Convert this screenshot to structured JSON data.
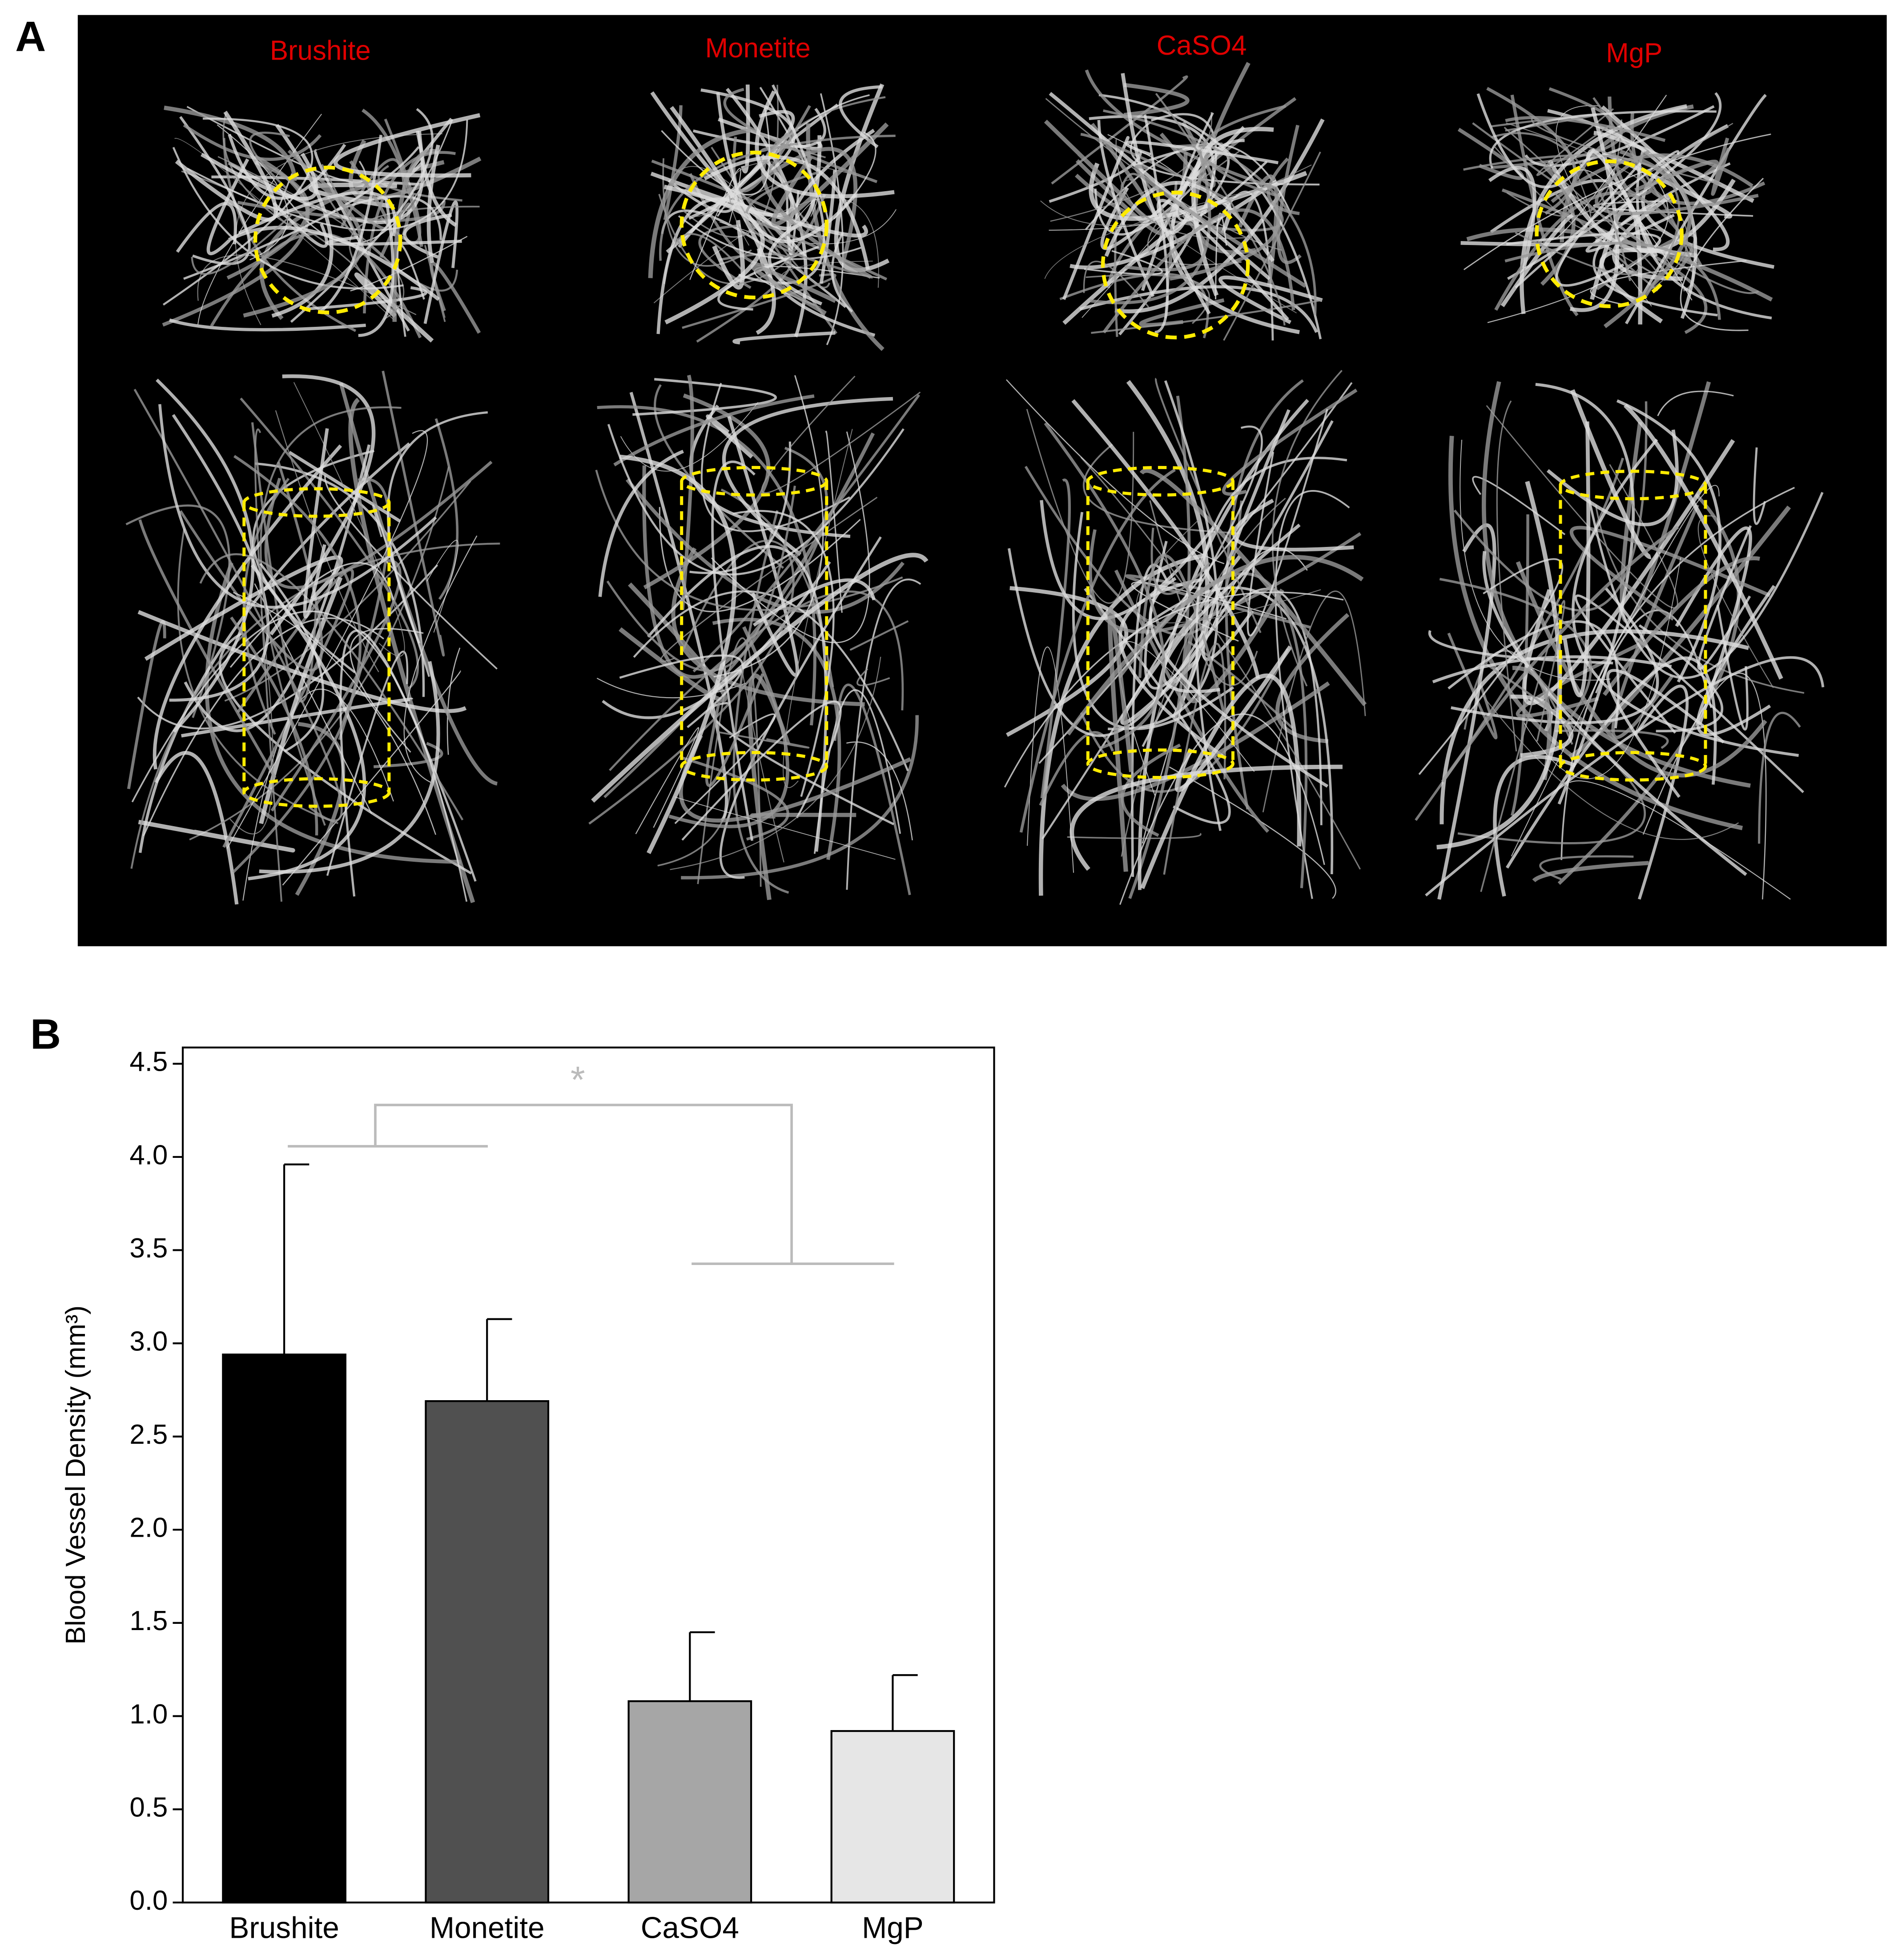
{
  "panel_a": {
    "label": "A",
    "titles": [
      "Brushite",
      "Monetite",
      "CaSO4",
      "MgP"
    ]
  },
  "panel_b": {
    "label": "B"
  },
  "chart_data": {
    "type": "bar",
    "y_label": "Blood Vessel Density (mm³)",
    "annotation": "*",
    "categories": [
      "Brushite",
      "Monetite",
      "CaSO4",
      "MgP"
    ],
    "values": [
      2.94,
      2.69,
      1.08,
      0.92
    ],
    "errors": [
      1.02,
      0.44,
      0.37,
      0.3
    ],
    "colors": [
      "#000000",
      "#505050",
      "#a6a6a6",
      "#e6e6e6"
    ],
    "ylim": [
      0,
      4.5
    ],
    "yticks": [
      {
        "value": 0,
        "label": "0.0"
      },
      0.5,
      {
        "value": 1,
        "label": "1.0"
      },
      1.5,
      {
        "value": 2,
        "label": "2.0"
      },
      2.5,
      {
        "value": 3,
        "label": "3.0"
      },
      3.5,
      {
        "value": 4,
        "label": "4.0"
      },
      4.5
    ],
    "grid": false
  }
}
